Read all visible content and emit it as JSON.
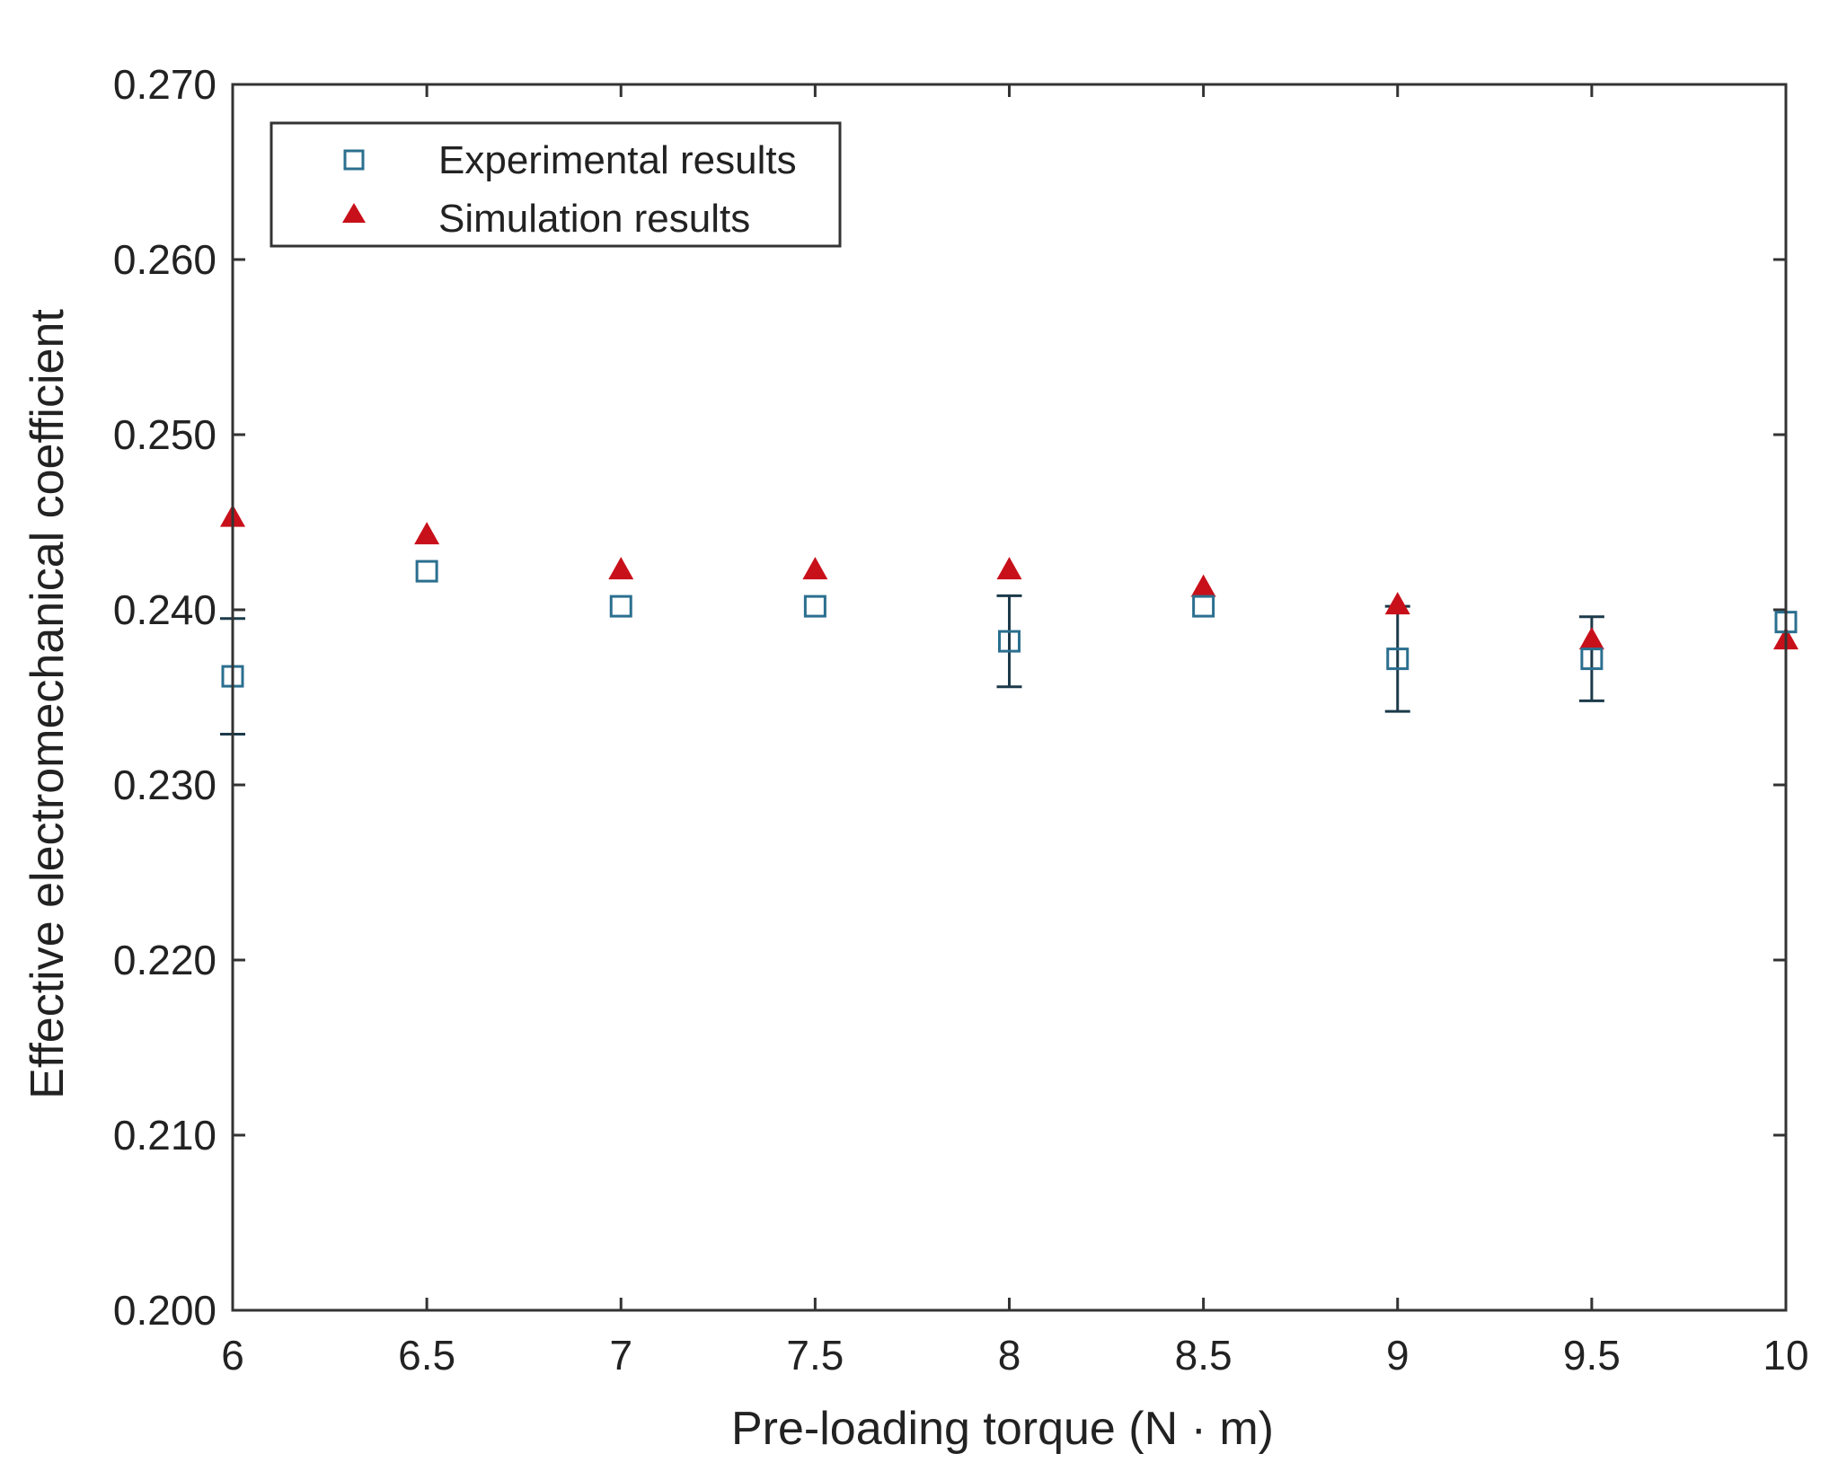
{
  "chart_data": {
    "type": "scatter",
    "title": "",
    "xlabel": "Pre-loading torque (N · m)",
    "ylabel": "Effective electromechanical coefficient",
    "xlim": [
      6,
      10
    ],
    "ylim": [
      0.2,
      0.27
    ],
    "x_ticks": [
      "6",
      "6.5",
      "7",
      "7.5",
      "8",
      "8.5",
      "9",
      "9.5",
      "10"
    ],
    "y_ticks": [
      "0.200",
      "0.210",
      "0.220",
      "0.230",
      "0.240",
      "0.250",
      "0.260",
      "0.270"
    ],
    "grid": false,
    "legend_position": "top-left",
    "series": [
      {
        "name": "Experimental results",
        "marker": "open-square",
        "color": "#2b6f8f",
        "x": [
          6,
          6.5,
          7,
          7.5,
          8,
          8.5,
          9,
          9.5,
          10
        ],
        "y": [
          0.2362,
          0.2422,
          0.2402,
          0.2402,
          0.2382,
          0.2402,
          0.2372,
          0.2372,
          0.2393
        ],
        "error_low": [
          0.2329,
          null,
          null,
          null,
          0.2356,
          null,
          0.2342,
          0.2348,
          null
        ],
        "error_high": [
          0.2395,
          null,
          null,
          null,
          0.2408,
          null,
          0.2402,
          0.2396,
          null
        ]
      },
      {
        "name": "Simulation results",
        "marker": "filled-triangle",
        "color": "#c8101a",
        "x": [
          6,
          6.5,
          7,
          7.5,
          8,
          8.5,
          9,
          9.5,
          10
        ],
        "y": [
          0.2453,
          0.2443,
          0.2423,
          0.2423,
          0.2423,
          0.2413,
          0.2403,
          0.2383,
          0.2383
        ]
      }
    ]
  }
}
